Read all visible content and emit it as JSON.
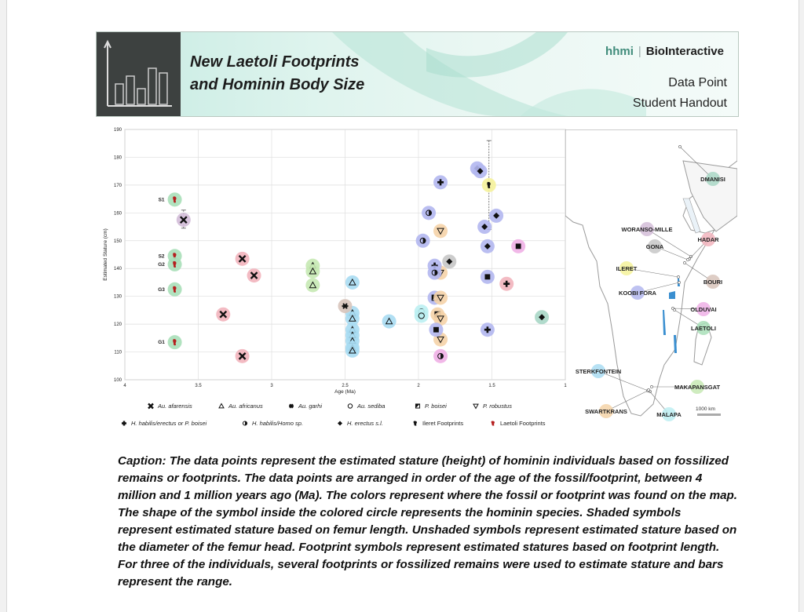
{
  "header": {
    "title_line1": "New Laetoli Footprints",
    "title_line2": "and Hominin Body Size",
    "brand_hhmi": "hhmi",
    "brand_bio": "BioInteractive",
    "subtitle_line1": "Data Point",
    "subtitle_line2": "Student Handout"
  },
  "chart_data": {
    "type": "scatter",
    "title": "",
    "xlabel": "Age (Ma)",
    "ylabel": "Estimated Stature (cm)",
    "xlim": [
      4,
      1
    ],
    "ylim": [
      100,
      190
    ],
    "x_ticks": [
      4,
      3.5,
      3,
      2.5,
      2,
      1.5,
      1
    ],
    "x_tick_labels": [
      "4",
      "3.5",
      "3",
      "2.5",
      "2",
      "1.5",
      "1"
    ],
    "y_ticks": [
      100,
      110,
      120,
      130,
      140,
      150,
      160,
      170,
      180,
      190
    ],
    "grid": true,
    "site_colors": {
      "Laetoli": "#a9dfb8",
      "Hadar": "#f2b4bd",
      "Makapansgat": "#c7e9b4",
      "Sterkfontein": "#a9dcf2",
      "Swartkrans": "#f5d3a8",
      "Koobi Fora": "#b3b7ef",
      "Ileret": "#f5f29a",
      "Olduvai": "#efb0e6",
      "Malapa": "#bdeff2",
      "Bouri": "#d8c4bb",
      "Gona": "#c7c7c7",
      "Dmanisi": "#a9d7c6",
      "Woranso-Mille": "#d3bdd8"
    },
    "series": [
      {
        "name": "Laetoli Footprints",
        "symbol": "foot",
        "site": "Laetoli",
        "points": [
          {
            "x": 3.66,
            "y": 164.8,
            "label": "S1"
          },
          {
            "x": 3.66,
            "y": 144.5,
            "label": "S2"
          },
          {
            "x": 3.66,
            "y": 141.5,
            "label": "G2"
          },
          {
            "x": 3.66,
            "y": 132.5,
            "label": "G3"
          },
          {
            "x": 3.66,
            "y": 113.5,
            "label": "G1"
          }
        ]
      },
      {
        "name": "Au. afarensis",
        "symbol": "x",
        "points": [
          {
            "x": 3.6,
            "y": 157.5,
            "site": "Woranso-Mille",
            "range": [
              154.5,
              161
            ]
          },
          {
            "x": 3.2,
            "y": 143.5,
            "site": "Hadar"
          },
          {
            "x": 3.12,
            "y": 137.5,
            "site": "Hadar"
          },
          {
            "x": 3.33,
            "y": 123.5,
            "site": "Hadar"
          },
          {
            "x": 3.2,
            "y": 108.5,
            "site": "Hadar"
          }
        ]
      },
      {
        "name": "Au. africanus",
        "symbol": "triangle",
        "points": [
          {
            "x": 2.72,
            "y": 141,
            "site": "Makapansgat"
          },
          {
            "x": 2.72,
            "y": 139,
            "site": "Makapansgat"
          },
          {
            "x": 2.72,
            "y": 134,
            "site": "Makapansgat"
          },
          {
            "x": 2.45,
            "y": 135,
            "site": "Sterkfontein"
          },
          {
            "x": 2.45,
            "y": 124,
            "site": "Sterkfontein"
          },
          {
            "x": 2.45,
            "y": 122,
            "site": "Sterkfontein"
          },
          {
            "x": 2.45,
            "y": 118,
            "site": "Sterkfontein"
          },
          {
            "x": 2.45,
            "y": 116,
            "site": "Sterkfontein"
          },
          {
            "x": 2.45,
            "y": 114,
            "site": "Sterkfontein"
          },
          {
            "x": 2.45,
            "y": 111.5,
            "site": "Sterkfontein"
          },
          {
            "x": 2.45,
            "y": 110.5,
            "site": "Sterkfontein"
          },
          {
            "x": 2.2,
            "y": 121,
            "site": "Sterkfontein"
          }
        ]
      },
      {
        "name": "Au. garhi",
        "symbol": "star",
        "points": [
          {
            "x": 2.5,
            "y": 126.5,
            "site": "Bouri"
          }
        ]
      },
      {
        "name": "Au. sediba",
        "symbol": "circle",
        "points": [
          {
            "x": 1.98,
            "y": 124.5,
            "site": "Malapa"
          },
          {
            "x": 1.98,
            "y": 123,
            "site": "Malapa"
          }
        ]
      },
      {
        "name": "P. boisei",
        "symbol": "halfsquare",
        "points": [
          {
            "x": 1.89,
            "y": 129.5,
            "site": "Koobi Fora"
          },
          {
            "x": 1.87,
            "y": 123.5,
            "site": "Swartkrans"
          }
        ]
      },
      {
        "name": "P. robustus",
        "symbol": "invtriangle",
        "points": [
          {
            "x": 1.85,
            "y": 153.5,
            "site": "Swartkrans"
          },
          {
            "x": 1.85,
            "y": 138.5,
            "site": "Swartkrans"
          },
          {
            "x": 1.85,
            "y": 129.5,
            "site": "Swartkrans"
          },
          {
            "x": 1.85,
            "y": 122,
            "site": "Swartkrans"
          },
          {
            "x": 1.85,
            "y": 114.5,
            "site": "Swartkrans"
          }
        ]
      },
      {
        "name": "H. habilis/erectus or P. boisei",
        "symbol": "plus",
        "points": [
          {
            "x": 1.85,
            "y": 171,
            "site": "Koobi Fora"
          },
          {
            "x": 1.89,
            "y": 141,
            "site": "Koobi Fora"
          },
          {
            "x": 1.53,
            "y": 118,
            "site": "Koobi Fora"
          },
          {
            "x": 1.4,
            "y": 134.5,
            "site": "Hadar"
          }
        ]
      },
      {
        "name": "H. habilis/Homo sp.",
        "symbol": "halfcircle",
        "points": [
          {
            "x": 1.93,
            "y": 160,
            "site": "Koobi Fora"
          },
          {
            "x": 1.97,
            "y": 150,
            "site": "Koobi Fora"
          },
          {
            "x": 1.89,
            "y": 138.5,
            "site": "Koobi Fora"
          },
          {
            "x": 1.85,
            "y": 108.5,
            "site": "Olduvai"
          }
        ]
      },
      {
        "name": "H. erectus s.l.",
        "symbol": "diamond",
        "points": [
          {
            "x": 1.6,
            "y": 176,
            "site": "Koobi Fora"
          },
          {
            "x": 1.58,
            "y": 175,
            "site": "Koobi Fora"
          },
          {
            "x": 1.47,
            "y": 159,
            "site": "Koobi Fora"
          },
          {
            "x": 1.55,
            "y": 155,
            "site": "Koobi Fora"
          },
          {
            "x": 1.53,
            "y": 148,
            "site": "Koobi Fora"
          },
          {
            "x": 1.79,
            "y": 142.5,
            "site": "Gona"
          },
          {
            "x": 1.16,
            "y": 122.5,
            "site": "Dmanisi"
          }
        ]
      },
      {
        "name": "P. boisei (femur length)",
        "symbol": "square",
        "points": [
          {
            "x": 1.32,
            "y": 148,
            "site": "Olduvai"
          },
          {
            "x": 1.53,
            "y": 137,
            "site": "Koobi Fora"
          },
          {
            "x": 1.88,
            "y": 118,
            "site": "Koobi Fora"
          }
        ]
      },
      {
        "name": "Ileret Footprints",
        "symbol": "blackfoot",
        "points": [
          {
            "x": 1.52,
            "y": 170,
            "site": "Ileret",
            "range": [
              154,
              186
            ]
          }
        ]
      }
    ],
    "legend": [
      {
        "label": "Au. afarensis",
        "symbol": "x"
      },
      {
        "label": "Au. africanus",
        "symbol": "triangle"
      },
      {
        "label": "Au. garhi",
        "symbol": "star"
      },
      {
        "label": "Au. sediba",
        "symbol": "circle"
      },
      {
        "label": "P. boisei",
        "symbol": "halfsquare"
      },
      {
        "label": "P. robustus",
        "symbol": "invtriangle"
      },
      {
        "label": "H. habilis/erectus or P. boisei",
        "symbol": "plus"
      },
      {
        "label": "H. habilis/Homo sp.",
        "symbol": "halfcircle"
      },
      {
        "label": "H. erectus s.l.",
        "symbol": "diamond"
      },
      {
        "label": "Ileret Footprints",
        "symbol": "blackfoot"
      },
      {
        "label": "Laetoli Footprints",
        "symbol": "foot"
      }
    ]
  },
  "map": {
    "sites": [
      "DMANISI",
      "WORANSO-MILLE",
      "HADAR",
      "GONA",
      "ILERET",
      "BOURI",
      "KOOBI FORA",
      "OLDUVAI",
      "LAETOLI",
      "STERKFONTEIN",
      "MAKAPANSGAT",
      "SWARTKRANS",
      "MALAPA"
    ],
    "scale_label": "1000 km"
  },
  "caption": "Caption: The data points represent the estimated stature (height) of hominin individuals based on fossilized remains or footprints. The data points are arranged in order of the age of the fossil/footprint, between 4 million and 1 million years ago (Ma). The colors represent where the fossil or footprint was found on the map. The shape of the symbol inside the colored circle represents the hominin species. Shaded symbols represent estimated stature based on femur length. Unshaded symbols represent estimated stature based on the diameter of the femur head. Footprint symbols represent estimated statures based on footprint length. For three of the individuals, several footprints or fossilized remains were used to estimate stature and bars represent the range."
}
